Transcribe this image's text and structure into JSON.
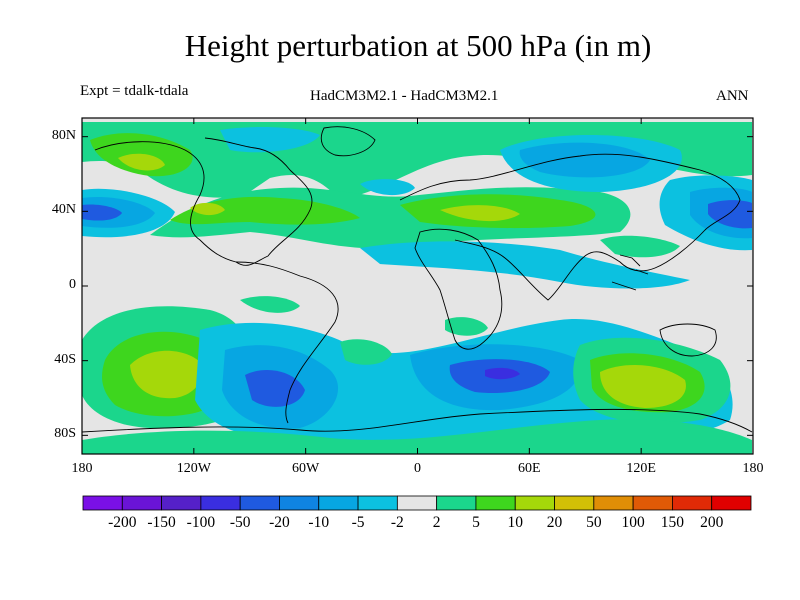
{
  "title": "Height perturbation at 500 hPa (in m)",
  "experiment": "Expt = tdalk-tdala",
  "models": "HadCM3M2.1 - HadCM3M2.1",
  "season": "ANN",
  "colors": {
    "background": "#e5e5e5",
    "coastline": "#000000"
  },
  "axes": {
    "x_ticks": [
      "180",
      "120W",
      "60W",
      "0",
      "60E",
      "120E",
      "180"
    ],
    "y_ticks": [
      "80N",
      "40N",
      "0",
      "40S",
      "80S"
    ]
  },
  "colorbar": {
    "labels": [
      "-200",
      "-150",
      "-100",
      "-50",
      "-20",
      "-10",
      "-5",
      "-2",
      "2",
      "5",
      "10",
      "20",
      "50",
      "100",
      "150",
      "200"
    ],
    "colors": [
      "#7a10e6",
      "#6a14d6",
      "#5520c8",
      "#3a2ee0",
      "#1f5ae0",
      "#0f84e2",
      "#07a6e2",
      "#0cc1e0",
      "#e5e5e5",
      "#1bd68c",
      "#3ed61e",
      "#a5d80a",
      "#d2c006",
      "#e08e06",
      "#e05a06",
      "#e02a06",
      "#e00000"
    ]
  }
}
